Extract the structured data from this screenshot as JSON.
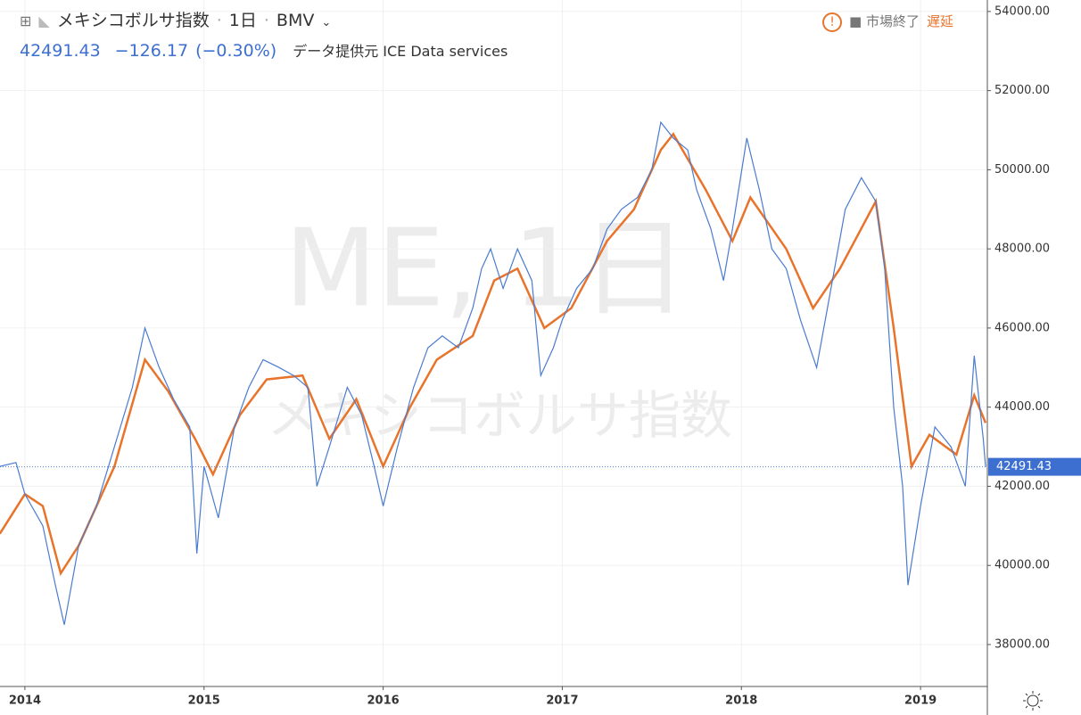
{
  "header": {
    "title": "メキシコボルサ指数",
    "interval": "1日",
    "exchange": "BMV",
    "last_price": "42491.43",
    "change": "−126.17",
    "change_pct": "(−0.30%)",
    "source": "データ提供元 ICE Data services",
    "status": "市場終了",
    "delay": "遅延"
  },
  "watermark": {
    "symbol": "ME, 1日",
    "name": "メキシコボルサ指数"
  },
  "chart_data": {
    "type": "line",
    "xlim": [
      2013.861,
      2019.373
    ],
    "xticks": [
      2014,
      2015,
      2016,
      2017,
      2018,
      2019
    ],
    "ylim": [
      36940,
      54290
    ],
    "yticks": [
      {
        "value": 38000,
        "label": "38000.00"
      },
      {
        "value": 40000,
        "label": "40000.00"
      },
      {
        "value": 42000,
        "label": "42000.00"
      },
      {
        "value": 44000,
        "label": "44000.00"
      },
      {
        "value": 46000,
        "label": "46000.00"
      },
      {
        "value": 48000,
        "label": "48000.00"
      },
      {
        "value": 50000,
        "label": "50000.00"
      },
      {
        "value": 52000,
        "label": "52000.00"
      },
      {
        "value": 54000,
        "label": "54000.00"
      }
    ],
    "grid": true,
    "series": [
      {
        "color": "#4a7bd0",
        "x": [
          2013.86,
          2013.95,
          2014.0,
          2014.1,
          2014.17,
          2014.22,
          2014.3,
          2014.4,
          2014.5,
          2014.6,
          2014.67,
          2014.75,
          2014.83,
          2014.92,
          2014.96,
          2015.0,
          2015.08,
          2015.17,
          2015.25,
          2015.33,
          2015.42,
          2015.5,
          2015.58,
          2015.63,
          2015.7,
          2015.8,
          2015.88,
          2015.95,
          2016.0,
          2016.08,
          2016.17,
          2016.25,
          2016.33,
          2016.42,
          2016.5,
          2016.55,
          2016.6,
          2016.67,
          2016.75,
          2016.83,
          2016.88,
          2016.95,
          2017.0,
          2017.08,
          2017.17,
          2017.25,
          2017.33,
          2017.42,
          2017.5,
          2017.55,
          2017.62,
          2017.7,
          2017.75,
          2017.83,
          2017.9,
          2017.95,
          2018.03,
          2018.1,
          2018.17,
          2018.25,
          2018.33,
          2018.42,
          2018.5,
          2018.58,
          2018.67,
          2018.75,
          2018.8,
          2018.85,
          2018.9,
          2018.93,
          2019.0,
          2019.08,
          2019.17,
          2019.25,
          2019.3,
          2019.35,
          2019.363
        ],
        "values": [
          42500,
          42600,
          41800,
          41000,
          39500,
          38500,
          40500,
          41500,
          43000,
          44500,
          46000,
          45000,
          44200,
          43500,
          40300,
          42500,
          41200,
          43500,
          44500,
          45200,
          45000,
          44800,
          44500,
          42000,
          43000,
          44500,
          43800,
          42500,
          41500,
          43000,
          44500,
          45500,
          45800,
          45500,
          46500,
          47500,
          48000,
          47000,
          48000,
          47200,
          44800,
          45500,
          46200,
          47000,
          47500,
          48500,
          49000,
          49300,
          50000,
          51200,
          50800,
          50500,
          49500,
          48500,
          47200,
          48500,
          50800,
          49500,
          48000,
          47500,
          46200,
          45000,
          47000,
          49000,
          49800,
          49200,
          47500,
          44000,
          42000,
          39500,
          41500,
          43500,
          43000,
          42000,
          45300,
          43200,
          42491.43
        ]
      },
      {
        "color": "#e8742c",
        "x": [
          2013.86,
          2014.0,
          2014.1,
          2014.2,
          2014.3,
          2014.5,
          2014.67,
          2014.8,
          2014.95,
          2015.05,
          2015.2,
          2015.35,
          2015.55,
          2015.7,
          2015.85,
          2016.0,
          2016.15,
          2016.3,
          2016.5,
          2016.62,
          2016.75,
          2016.9,
          2017.05,
          2017.25,
          2017.4,
          2017.55,
          2017.62,
          2017.8,
          2017.95,
          2018.05,
          2018.25,
          2018.4,
          2018.55,
          2018.75,
          2018.85,
          2018.95,
          2019.05,
          2019.2,
          2019.3,
          2019.363
        ],
        "values": [
          40800,
          41800,
          41500,
          39800,
          40500,
          42500,
          45200,
          44400,
          43200,
          42300,
          43800,
          44700,
          44800,
          43200,
          44200,
          42500,
          44000,
          45200,
          45800,
          47200,
          47500,
          46000,
          46500,
          48200,
          49000,
          50500,
          50900,
          49500,
          48200,
          49300,
          48000,
          46500,
          47500,
          49200,
          46000,
          42500,
          43300,
          42800,
          44300,
          43600
        ]
      }
    ]
  }
}
